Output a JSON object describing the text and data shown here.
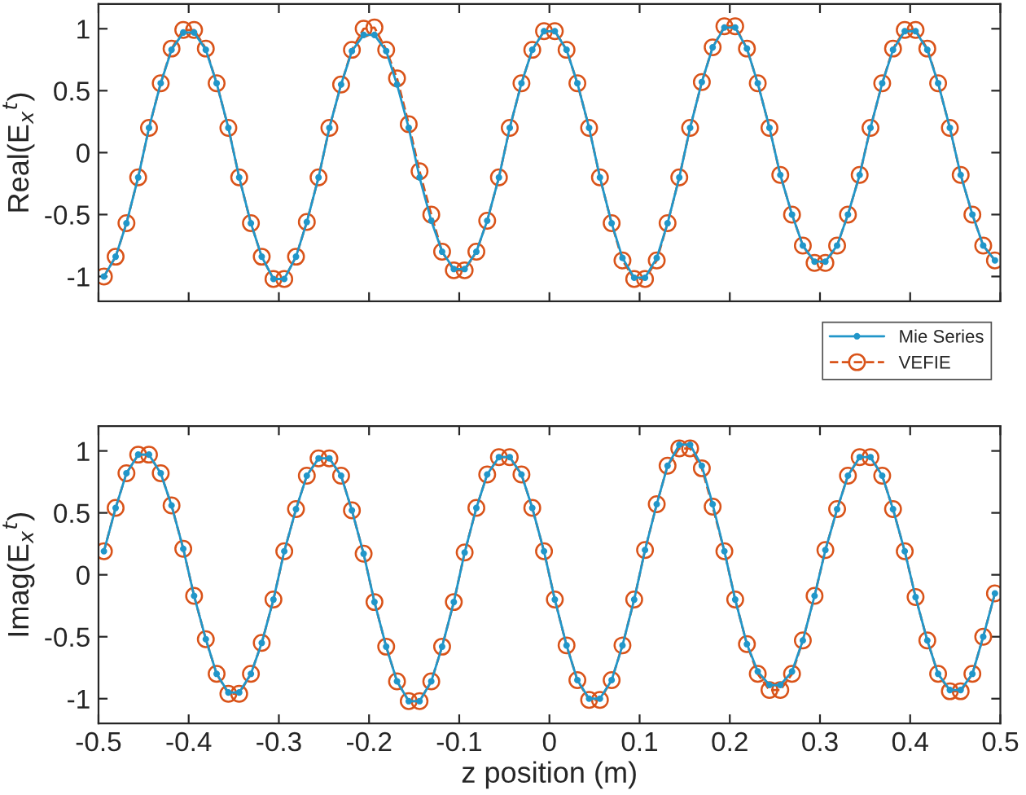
{
  "chart_data": [
    {
      "type": "line",
      "ylabel": "Real(E$_{x}$$^{t}$)",
      "xlim": [
        -0.5,
        0.5
      ],
      "xticks": [
        -0.5,
        -0.4,
        -0.3,
        -0.2,
        -0.1,
        0,
        0.1,
        0.2,
        0.3,
        0.4,
        0.5
      ],
      "ylim": [
        -1.2,
        1.2
      ],
      "yticks": [
        -1,
        -0.5,
        0,
        0.5,
        1
      ],
      "tick_labels": "y",
      "grid": false,
      "legend": "bottom right",
      "x": [
        -0.494,
        -0.481,
        -0.469,
        -0.456,
        -0.444,
        -0.431,
        -0.419,
        -0.406,
        -0.394,
        -0.381,
        -0.369,
        -0.356,
        -0.344,
        -0.331,
        -0.319,
        -0.306,
        -0.294,
        -0.281,
        -0.269,
        -0.256,
        -0.244,
        -0.231,
        -0.219,
        -0.206,
        -0.194,
        -0.181,
        -0.169,
        -0.156,
        -0.144,
        -0.131,
        -0.119,
        -0.106,
        -0.094,
        -0.081,
        -0.069,
        -0.056,
        -0.044,
        -0.031,
        -0.019,
        -0.006,
        0.006,
        0.019,
        0.031,
        0.044,
        0.056,
        0.069,
        0.081,
        0.094,
        0.106,
        0.119,
        0.131,
        0.144,
        0.156,
        0.169,
        0.181,
        0.194,
        0.206,
        0.219,
        0.231,
        0.244,
        0.256,
        0.269,
        0.281,
        0.294,
        0.306,
        0.319,
        0.331,
        0.344,
        0.356,
        0.369,
        0.381,
        0.394,
        0.406,
        0.419,
        0.431,
        0.444,
        0.456,
        0.469,
        0.481,
        0.494
      ],
      "series": [
        {
          "name": "Mie Series",
          "color": "#2196c9",
          "marker": "circle",
          "line_style": "solid",
          "values": [
            -1.0,
            -0.84,
            -0.57,
            -0.2,
            0.2,
            0.56,
            0.83,
            0.97,
            0.97,
            0.83,
            0.56,
            0.2,
            -0.2,
            -0.57,
            -0.84,
            -1.02,
            -1.02,
            -0.84,
            -0.56,
            -0.2,
            0.2,
            0.55,
            0.82,
            0.95,
            0.95,
            0.82,
            0.55,
            0.2,
            -0.2,
            -0.55,
            -0.8,
            -0.94,
            -0.94,
            -0.8,
            -0.55,
            -0.2,
            0.2,
            0.56,
            0.83,
            0.98,
            0.98,
            0.83,
            0.56,
            0.2,
            -0.2,
            -0.57,
            -0.85,
            -1.01,
            -1.01,
            -0.85,
            -0.57,
            -0.2,
            0.2,
            0.57,
            0.85,
            1.01,
            1.01,
            0.84,
            0.56,
            0.2,
            -0.18,
            -0.5,
            -0.75,
            -0.88,
            -0.88,
            -0.75,
            -0.5,
            -0.18,
            0.2,
            0.56,
            0.83,
            0.98,
            0.98,
            0.83,
            0.56,
            0.2,
            -0.18,
            -0.5,
            -0.75,
            -0.87
          ]
        },
        {
          "name": "VEFIE",
          "color": "#d95319",
          "marker": "circle",
          "line_style": "dashed",
          "values": [
            -1.0,
            -0.84,
            -0.57,
            -0.2,
            0.2,
            0.56,
            0.84,
            0.99,
            0.99,
            0.84,
            0.56,
            0.2,
            -0.2,
            -0.57,
            -0.84,
            -1.02,
            -1.02,
            -0.84,
            -0.56,
            -0.2,
            0.2,
            0.55,
            0.83,
            1.0,
            1.01,
            0.83,
            0.6,
            0.23,
            -0.15,
            -0.5,
            -0.8,
            -0.95,
            -0.95,
            -0.8,
            -0.55,
            -0.2,
            0.2,
            0.56,
            0.83,
            0.98,
            0.98,
            0.83,
            0.56,
            0.2,
            -0.2,
            -0.57,
            -0.87,
            -1.02,
            -1.02,
            -0.87,
            -0.57,
            -0.2,
            0.2,
            0.57,
            0.85,
            1.02,
            1.02,
            0.84,
            0.56,
            0.2,
            -0.18,
            -0.5,
            -0.75,
            -0.89,
            -0.89,
            -0.75,
            -0.5,
            -0.18,
            0.2,
            0.56,
            0.84,
            0.99,
            0.99,
            0.84,
            0.56,
            0.2,
            -0.18,
            -0.5,
            -0.75,
            -0.87
          ]
        }
      ]
    },
    {
      "type": "line",
      "ylabel": "Imag(E$_{x}$$^{t}$)",
      "xlabel": "z position (m)",
      "xlim": [
        -0.5,
        0.5
      ],
      "xticks": [
        -0.5,
        -0.4,
        -0.3,
        -0.2,
        -0.1,
        0,
        0.1,
        0.2,
        0.3,
        0.4,
        0.5
      ],
      "ylim": [
        -1.2,
        1.2
      ],
      "yticks": [
        -1,
        -0.5,
        0,
        0.5,
        1
      ],
      "grid": false,
      "x": [
        -0.494,
        -0.481,
        -0.469,
        -0.456,
        -0.444,
        -0.431,
        -0.419,
        -0.406,
        -0.394,
        -0.381,
        -0.369,
        -0.356,
        -0.344,
        -0.331,
        -0.319,
        -0.306,
        -0.294,
        -0.281,
        -0.269,
        -0.256,
        -0.244,
        -0.231,
        -0.219,
        -0.206,
        -0.194,
        -0.181,
        -0.169,
        -0.156,
        -0.144,
        -0.131,
        -0.119,
        -0.106,
        -0.094,
        -0.081,
        -0.069,
        -0.056,
        -0.044,
        -0.031,
        -0.019,
        -0.006,
        0.006,
        0.019,
        0.031,
        0.044,
        0.056,
        0.069,
        0.081,
        0.094,
        0.106,
        0.119,
        0.131,
        0.144,
        0.156,
        0.169,
        0.181,
        0.194,
        0.206,
        0.219,
        0.231,
        0.244,
        0.256,
        0.269,
        0.281,
        0.294,
        0.306,
        0.319,
        0.331,
        0.344,
        0.356,
        0.369,
        0.381,
        0.394,
        0.406,
        0.419,
        0.431,
        0.444,
        0.456,
        0.469,
        0.481,
        0.494
      ],
      "series": [
        {
          "color": "#2196c9",
          "marker": "circle",
          "line_style": "solid",
          "values": [
            0.19,
            0.54,
            0.82,
            0.97,
            0.97,
            0.82,
            0.56,
            0.21,
            -0.17,
            -0.52,
            -0.8,
            -0.95,
            -0.95,
            -0.8,
            -0.55,
            -0.2,
            0.19,
            0.53,
            0.8,
            0.94,
            0.94,
            0.8,
            0.52,
            0.17,
            -0.22,
            -0.58,
            -0.86,
            -1.02,
            -1.02,
            -0.86,
            -0.58,
            -0.22,
            0.18,
            0.54,
            0.81,
            0.95,
            0.95,
            0.81,
            0.54,
            0.19,
            -0.2,
            -0.57,
            -0.85,
            -1.0,
            -1.0,
            -0.85,
            -0.57,
            -0.2,
            0.2,
            0.57,
            0.88,
            1.05,
            1.05,
            0.88,
            0.57,
            0.19,
            -0.2,
            -0.56,
            -0.78,
            -0.89,
            -0.89,
            -0.78,
            -0.53,
            -0.17,
            0.2,
            0.53,
            0.8,
            0.95,
            0.95,
            0.8,
            0.53,
            0.19,
            -0.18,
            -0.53,
            -0.8,
            -0.93,
            -0.93,
            -0.8,
            -0.5,
            -0.15
          ]
        },
        {
          "color": "#d95319",
          "marker": "circle",
          "line_style": "dashed",
          "values": [
            0.19,
            0.54,
            0.82,
            0.97,
            0.97,
            0.82,
            0.56,
            0.21,
            -0.17,
            -0.52,
            -0.8,
            -0.96,
            -0.96,
            -0.8,
            -0.55,
            -0.2,
            0.19,
            0.53,
            0.8,
            0.94,
            0.94,
            0.8,
            0.52,
            0.17,
            -0.22,
            -0.58,
            -0.86,
            -1.02,
            -1.02,
            -0.86,
            -0.58,
            -0.22,
            0.18,
            0.54,
            0.81,
            0.95,
            0.95,
            0.81,
            0.54,
            0.19,
            -0.2,
            -0.57,
            -0.85,
            -1.01,
            -1.01,
            -0.85,
            -0.57,
            -0.2,
            0.2,
            0.57,
            0.88,
            1.02,
            1.02,
            0.86,
            0.55,
            0.19,
            -0.2,
            -0.56,
            -0.8,
            -0.93,
            -0.93,
            -0.8,
            -0.53,
            -0.17,
            0.2,
            0.53,
            0.8,
            0.95,
            0.95,
            0.8,
            0.53,
            0.19,
            -0.18,
            -0.53,
            -0.8,
            -0.94,
            -0.94,
            -0.8,
            -0.5,
            -0.15
          ]
        }
      ]
    }
  ]
}
